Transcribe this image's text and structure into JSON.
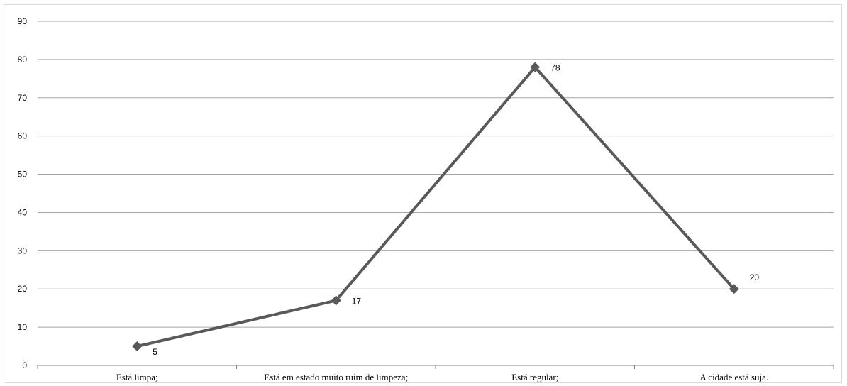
{
  "chart_data": {
    "type": "line",
    "title": "",
    "xlabel": "",
    "ylabel": "",
    "categories": [
      "Está limpa;",
      "Está em estado muito ruim de limpeza;",
      "Está regular;",
      "A cidade está suja."
    ],
    "series": [
      {
        "values": [
          5,
          17,
          78,
          20
        ],
        "color": "#595959",
        "marker": "diamond",
        "data_labels": [
          "5",
          "17",
          "78",
          "20"
        ]
      }
    ],
    "ylim": [
      0,
      90
    ],
    "yticks": [
      "0",
      "10",
      "20",
      "30",
      "40",
      "50",
      "60",
      "70",
      "80",
      "90"
    ],
    "grid": true,
    "legend": "none"
  }
}
